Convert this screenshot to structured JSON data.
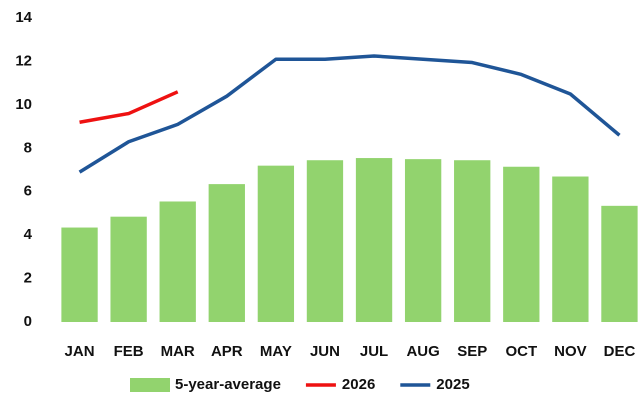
{
  "chart_data": {
    "type": "bar",
    "categories": [
      "JAN",
      "FEB",
      "MAR",
      "APR",
      "MAY",
      "JUN",
      "JUL",
      "AUG",
      "SEP",
      "OCT",
      "NOV",
      "DEC"
    ],
    "series": [
      {
        "name": "5-year-average",
        "type": "bar",
        "color": "#92d36e",
        "values": [
          4.35,
          4.85,
          5.55,
          6.35,
          7.2,
          7.45,
          7.55,
          7.5,
          7.45,
          7.15,
          6.7,
          5.35
        ]
      },
      {
        "name": "2026",
        "type": "line",
        "color": "#ee1111",
        "values": [
          9.2,
          9.6,
          10.6,
          null,
          null,
          null,
          null,
          null,
          null,
          null,
          null,
          null
        ]
      },
      {
        "name": "2025",
        "type": "line",
        "color": "#1f5597",
        "values": [
          6.9,
          8.3,
          9.1,
          10.4,
          12.1,
          12.1,
          12.25,
          12.1,
          11.95,
          11.4,
          10.5,
          8.6
        ]
      }
    ],
    "ylim": [
      0,
      14
    ],
    "yticks": [
      0,
      2,
      4,
      6,
      8,
      10,
      12,
      14
    ],
    "grid": false,
    "legend": "bottom"
  }
}
